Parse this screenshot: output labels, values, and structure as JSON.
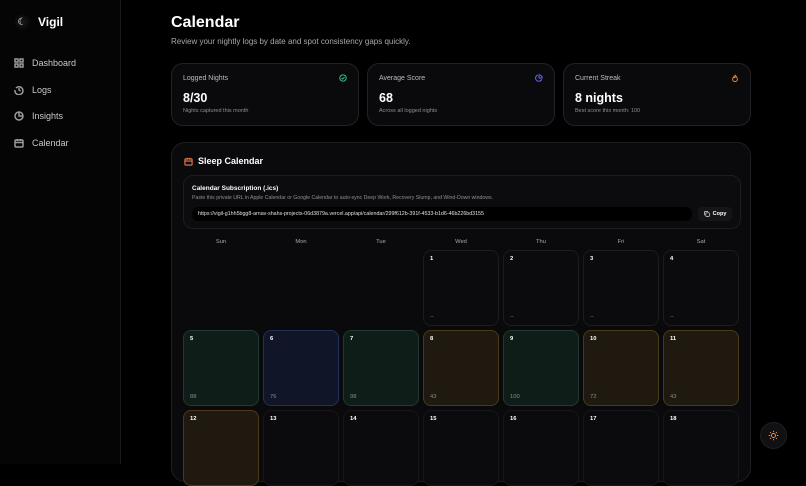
{
  "app": {
    "name": "Vigil"
  },
  "sidebar": {
    "items": [
      {
        "label": "Dashboard"
      },
      {
        "label": "Logs"
      },
      {
        "label": "Insights"
      },
      {
        "label": "Calendar"
      }
    ]
  },
  "header": {
    "title": "Calendar",
    "subtitle": "Review your nightly logs by date and spot consistency gaps quickly."
  },
  "stats": [
    {
      "label": "Logged Nights",
      "value": "8/30",
      "sub": "Nights captured this month",
      "icon": "check-circle-icon",
      "color": "#34c98a"
    },
    {
      "label": "Average Score",
      "value": "68",
      "sub": "Across all logged nights",
      "icon": "pie-chart-icon",
      "color": "#6a6cf0"
    },
    {
      "label": "Current Streak",
      "value": "8 nights",
      "sub": "Best score this month: 100",
      "icon": "flame-icon",
      "color": "#f08a3c"
    }
  ],
  "calendar": {
    "title": "Sleep Calendar",
    "subscription": {
      "title": "Calendar Subscription (.ics)",
      "description": "Paste this private URL in Apple Calendar or Google Calendar to auto-sync Deep Work, Recovery Slump, and Wind-Down windows.",
      "url": "https://vigil-g1hh5bgg8-arnav-shahs-projects-06d3879a.vercel.app/api/calendar/299f612b-391f-4533-b1d6-46b226bd3155",
      "copy_label": "Copy"
    },
    "weekdays": [
      "Sun",
      "Mon",
      "Tue",
      "Wed",
      "Thu",
      "Fri",
      "Sat"
    ],
    "leading_blanks": 3,
    "days": [
      {
        "day": "1",
        "score": "--",
        "tone": "none"
      },
      {
        "day": "2",
        "score": "--",
        "tone": "none"
      },
      {
        "day": "3",
        "score": "--",
        "tone": "none"
      },
      {
        "day": "4",
        "score": "--",
        "tone": "none"
      },
      {
        "day": "5",
        "score": "88",
        "tone": "green"
      },
      {
        "day": "6",
        "score": "76",
        "tone": "blue"
      },
      {
        "day": "7",
        "score": "98",
        "tone": "green"
      },
      {
        "day": "8",
        "score": "43",
        "tone": "amber"
      },
      {
        "day": "9",
        "score": "100",
        "tone": "green"
      },
      {
        "day": "10",
        "score": "72",
        "tone": "amber"
      },
      {
        "day": "11",
        "score": "43",
        "tone": "amber"
      },
      {
        "day": "12",
        "score": "",
        "tone": "amber"
      },
      {
        "day": "13",
        "score": "",
        "tone": "empty"
      },
      {
        "day": "14",
        "score": "",
        "tone": "empty"
      },
      {
        "day": "15",
        "score": "",
        "tone": "empty"
      },
      {
        "day": "16",
        "score": "",
        "tone": "empty"
      },
      {
        "day": "17",
        "score": "",
        "tone": "empty"
      },
      {
        "day": "18",
        "score": "",
        "tone": "empty"
      }
    ],
    "tones": {
      "green": {
        "bg": "#0f1d19",
        "border": "#1f3a30"
      },
      "blue": {
        "bg": "#101628",
        "border": "#24305a"
      },
      "amber": {
        "bg": "#1f1910",
        "border": "#4a3a17"
      },
      "none": {
        "bg": "#0b0b0e",
        "border": "#1c1c20"
      },
      "empty": {
        "bg": "#0b0b0e",
        "border": "#17171b"
      }
    }
  }
}
